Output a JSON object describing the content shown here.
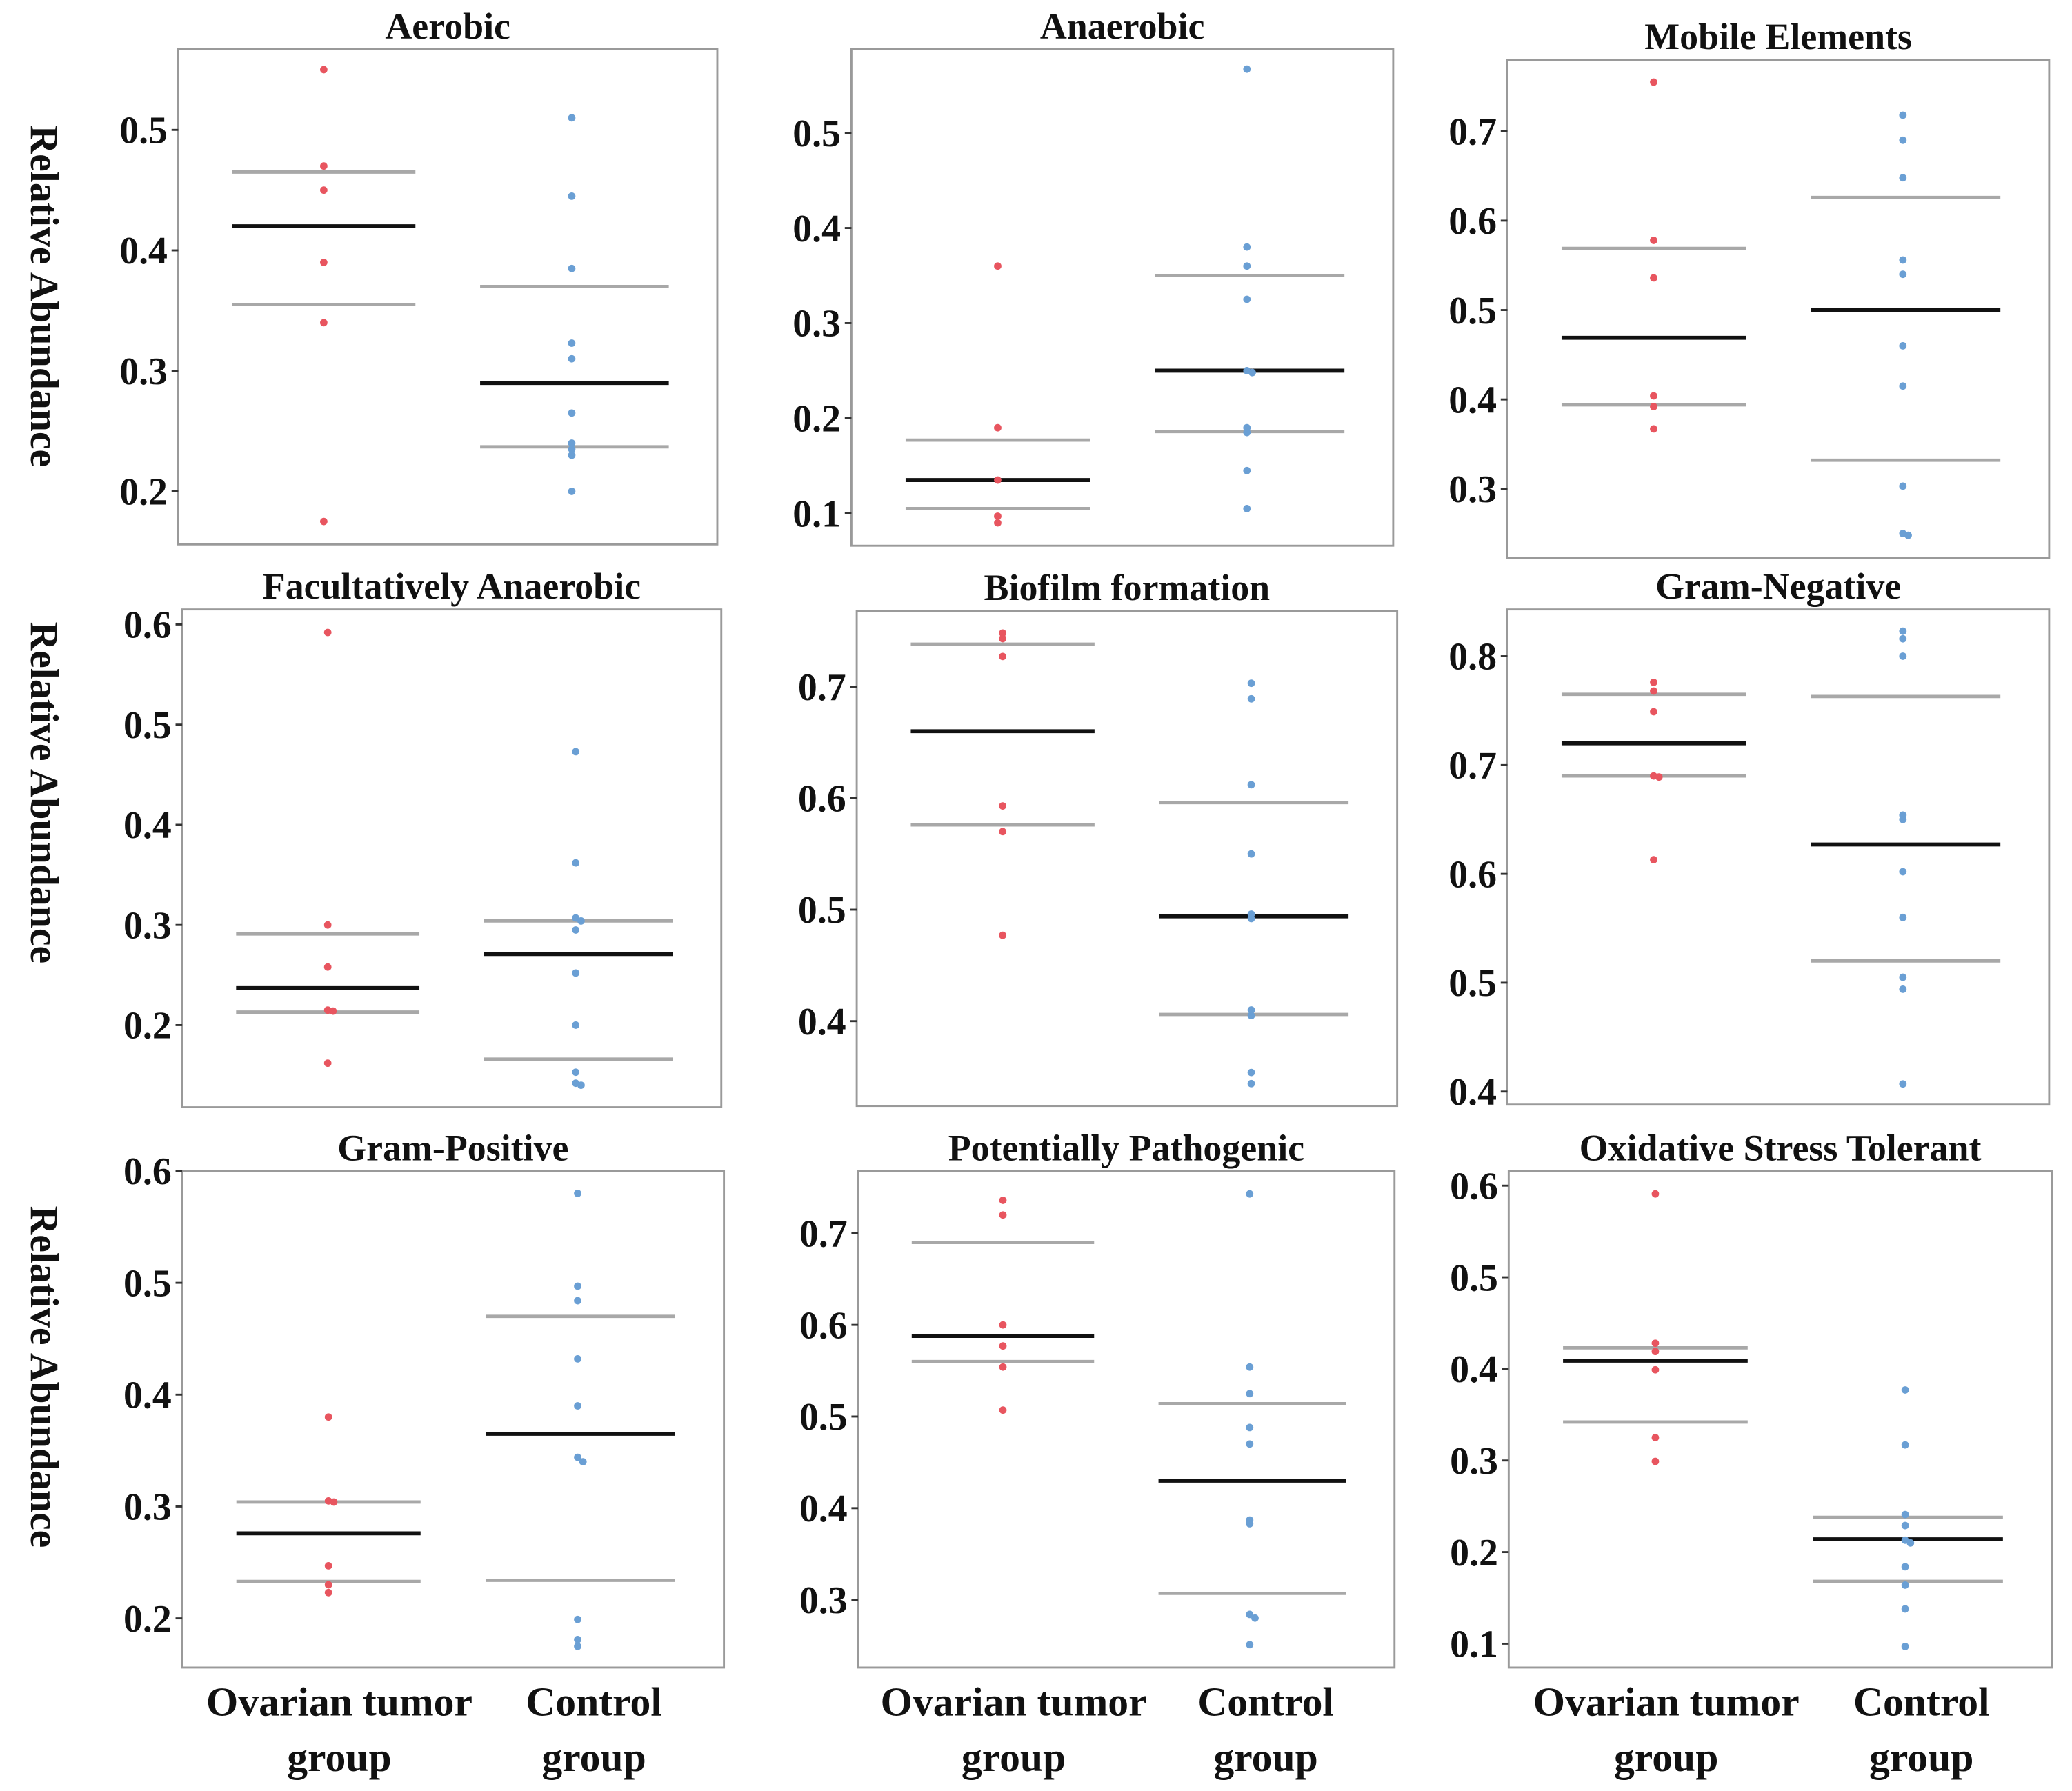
{
  "colors": {
    "tumor": "#e8555f",
    "control": "#6a9fd4",
    "median": "#111111",
    "quartile": "#a8a8a8",
    "frame": "#9a9a9a"
  },
  "ylabel": "Relative Abundance",
  "xlabels": {
    "tumor": [
      "Ovarian tumor",
      "group"
    ],
    "control": [
      "Control",
      "group"
    ]
  },
  "chart_data": [
    {
      "type": "scatter",
      "title": "Aerobic",
      "ylim": [
        0.156,
        0.567
      ],
      "yticks": [
        "0.2",
        "0.3",
        "0.4",
        "0.5"
      ],
      "tumor": {
        "values": [
          0.55,
          0.47,
          0.45,
          0.39,
          0.34,
          0.175
        ],
        "median": 0.42,
        "q1": 0.355,
        "q3": 0.465
      },
      "control": {
        "values": [
          0.51,
          0.445,
          0.385,
          0.323,
          0.31,
          0.265,
          0.24,
          0.235,
          0.23,
          0.2
        ],
        "median": 0.29,
        "q1": 0.237,
        "q3": 0.37
      }
    },
    {
      "type": "scatter",
      "title": "Anaerobic",
      "ylim": [
        0.066,
        0.588
      ],
      "yticks": [
        "0.1",
        "0.2",
        "0.3",
        "0.4",
        "0.5"
      ],
      "tumor": {
        "values": [
          0.36,
          0.19,
          0.135,
          0.097,
          0.09
        ],
        "median": 0.135,
        "q1": 0.105,
        "q3": 0.177
      },
      "control": {
        "values": [
          0.567,
          0.38,
          0.36,
          0.325,
          0.25,
          0.248,
          0.19,
          0.185,
          0.145,
          0.105
        ],
        "median": 0.25,
        "q1": 0.186,
        "q3": 0.35
      }
    },
    {
      "type": "scatter",
      "title": "Mobile Elements",
      "ylim": [
        0.223,
        0.78
      ],
      "yticks": [
        "0.3",
        "0.4",
        "0.5",
        "0.6",
        "0.7"
      ],
      "tumor": {
        "values": [
          0.755,
          0.578,
          0.536,
          0.404,
          0.392,
          0.367
        ],
        "median": 0.469,
        "q1": 0.394,
        "q3": 0.569
      },
      "control": {
        "values": [
          0.718,
          0.69,
          0.648,
          0.556,
          0.54,
          0.46,
          0.415,
          0.303,
          0.25,
          0.248
        ],
        "median": 0.5,
        "q1": 0.332,
        "q3": 0.626
      }
    },
    {
      "type": "scatter",
      "title": "Facultatively Anaerobic",
      "ylim": [
        0.118,
        0.615
      ],
      "yticks": [
        "0.2",
        "0.3",
        "0.4",
        "0.5",
        "0.6"
      ],
      "tumor": {
        "values": [
          0.592,
          0.3,
          0.258,
          0.215,
          0.214,
          0.162
        ],
        "median": 0.237,
        "q1": 0.213,
        "q3": 0.291
      },
      "control": {
        "values": [
          0.473,
          0.362,
          0.307,
          0.304,
          0.295,
          0.252,
          0.2,
          0.153,
          0.142,
          0.14
        ],
        "median": 0.271,
        "q1": 0.166,
        "q3": 0.304
      }
    },
    {
      "type": "scatter",
      "title": "Biofilm formation",
      "ylim": [
        0.324,
        0.768
      ],
      "yticks": [
        "0.4",
        "0.5",
        "0.6",
        "0.7"
      ],
      "tumor": {
        "values": [
          0.748,
          0.743,
          0.727,
          0.593,
          0.57,
          0.477
        ],
        "median": 0.66,
        "q1": 0.576,
        "q3": 0.738
      },
      "control": {
        "values": [
          0.703,
          0.689,
          0.612,
          0.55,
          0.496,
          0.492,
          0.41,
          0.405,
          0.354,
          0.344
        ],
        "median": 0.494,
        "q1": 0.406,
        "q3": 0.596
      }
    },
    {
      "type": "scatter",
      "title": "Gram-Negative",
      "ylim": [
        0.388,
        0.843
      ],
      "yticks": [
        "0.4",
        "0.5",
        "0.6",
        "0.7",
        "0.8"
      ],
      "tumor": {
        "values": [
          0.776,
          0.768,
          0.749,
          0.69,
          0.689,
          0.613
        ],
        "median": 0.72,
        "q1": 0.69,
        "q3": 0.765
      },
      "control": {
        "values": [
          0.823,
          0.816,
          0.8,
          0.654,
          0.65,
          0.602,
          0.56,
          0.505,
          0.494,
          0.407
        ],
        "median": 0.627,
        "q1": 0.52,
        "q3": 0.763
      }
    },
    {
      "type": "scatter",
      "title": "Gram-Positive",
      "ylim": [
        0.156,
        0.6
      ],
      "yticks": [
        "0.2",
        "0.3",
        "0.4",
        "0.5",
        "0.6"
      ],
      "tumor": {
        "values": [
          0.38,
          0.305,
          0.304,
          0.247,
          0.23,
          0.223
        ],
        "median": 0.276,
        "q1": 0.233,
        "q3": 0.304
      },
      "control": {
        "values": [
          0.58,
          0.497,
          0.484,
          0.432,
          0.39,
          0.344,
          0.34,
          0.199,
          0.181,
          0.175
        ],
        "median": 0.365,
        "q1": 0.234,
        "q3": 0.47
      }
    },
    {
      "type": "scatter",
      "title": "Potentially Pathogenic",
      "ylim": [
        0.226,
        0.768
      ],
      "yticks": [
        "0.3",
        "0.4",
        "0.5",
        "0.6",
        "0.7"
      ],
      "tumor": {
        "values": [
          0.736,
          0.72,
          0.6,
          0.577,
          0.554,
          0.507
        ],
        "median": 0.588,
        "q1": 0.56,
        "q3": 0.69
      },
      "control": {
        "values": [
          0.743,
          0.554,
          0.525,
          0.488,
          0.47,
          0.387,
          0.383,
          0.284,
          0.28,
          0.251
        ],
        "median": 0.43,
        "q1": 0.307,
        "q3": 0.514
      }
    },
    {
      "type": "scatter",
      "title": "Oxidative Stress Tolerant",
      "ylim": [
        0.074,
        0.616
      ],
      "yticks": [
        "0.1",
        "0.2",
        "0.3",
        "0.4",
        "0.5",
        "0.6"
      ],
      "tumor": {
        "values": [
          0.591,
          0.428,
          0.419,
          0.399,
          0.325,
          0.299
        ],
        "median": 0.409,
        "q1": 0.342,
        "q3": 0.423
      },
      "control": {
        "values": [
          0.377,
          0.317,
          0.241,
          0.229,
          0.213,
          0.21,
          0.184,
          0.164,
          0.138,
          0.097
        ],
        "median": 0.214,
        "q1": 0.168,
        "q3": 0.238
      }
    }
  ]
}
